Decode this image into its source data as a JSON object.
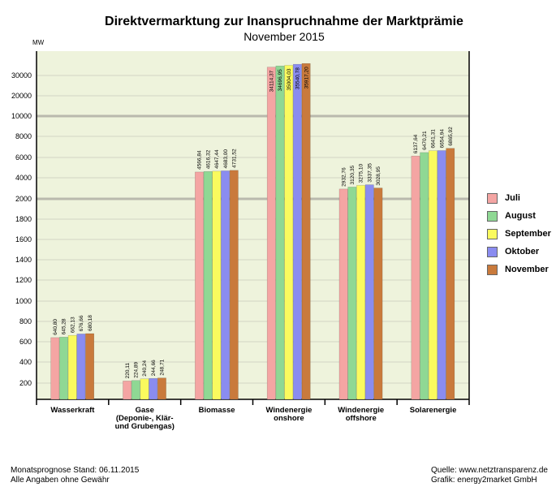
{
  "chart_data": {
    "type": "bar",
    "title": "Direktvermarktung zur Inanspruchnahme der Marktprämie",
    "subtitle": "November 2015",
    "ylabel": "MW",
    "yticks": [
      "200",
      "400",
      "600",
      "800",
      "1000",
      "1200",
      "1400",
      "1600",
      "1800",
      "2000",
      "4000",
      "6000",
      "8000",
      "10000",
      "20000",
      "30000"
    ],
    "categories": [
      "Wasserkraft",
      "Gase\n(Deponie-, Klär-\nund Grubengas)",
      "Biomasse",
      "Windenergie\nonshore",
      "Windenergie\noffshore",
      "Solarenergie"
    ],
    "series": [
      {
        "name": "Juli",
        "color": "#f4a5a3",
        "values": [
          640.8,
          220.11,
          4566.84,
          34114.37,
          2932.76,
          6137.64
        ],
        "labels": [
          "640,80",
          "220,11",
          "4566,84",
          "34114,37",
          "2932,76",
          "6137,64"
        ]
      },
      {
        "name": "August",
        "color": "#8fd894",
        "values": [
          645.28,
          224.89,
          4616.32,
          34696.95,
          3120.35,
          6470.21
        ],
        "labels": [
          "645,28",
          "224,89",
          "4616,32",
          "34696,95",
          "3120,35",
          "6470,21"
        ]
      },
      {
        "name": "September",
        "color": "#fafa5e",
        "values": [
          662.13,
          240.24,
          4647.44,
          35004.03,
          3275.1,
          6641.31
        ],
        "labels": [
          "662,13",
          "240,24",
          "4647,44",
          "35004,03",
          "3275,10",
          "6641,31"
        ]
      },
      {
        "name": "Oktober",
        "color": "#8a8cf0",
        "values": [
          676.66,
          244.66,
          4683.0,
          35540.78,
          3337.35,
          6654.94
        ],
        "labels": [
          "676,66",
          "244,66",
          "4683,00",
          "35540,78",
          "3337,35",
          "6654,94"
        ]
      },
      {
        "name": "November",
        "color": "#c97a3c",
        "values": [
          680.18,
          248.71,
          4731.52,
          35917.2,
          3028.95,
          6865.92
        ],
        "labels": [
          "680,18",
          "248,71",
          "4731,52",
          "35917,20",
          "3028,95",
          "6865,92"
        ]
      }
    ],
    "legend_position": "right"
  },
  "footer": {
    "left_line1": "Monatsprognose Stand: 06.11.2015",
    "left_line2": "Alle Angaben ohne Gewähr",
    "right_line1": "Quelle: www.netztransparenz.de",
    "right_line2": "Grafik: energy2market GmbH"
  }
}
